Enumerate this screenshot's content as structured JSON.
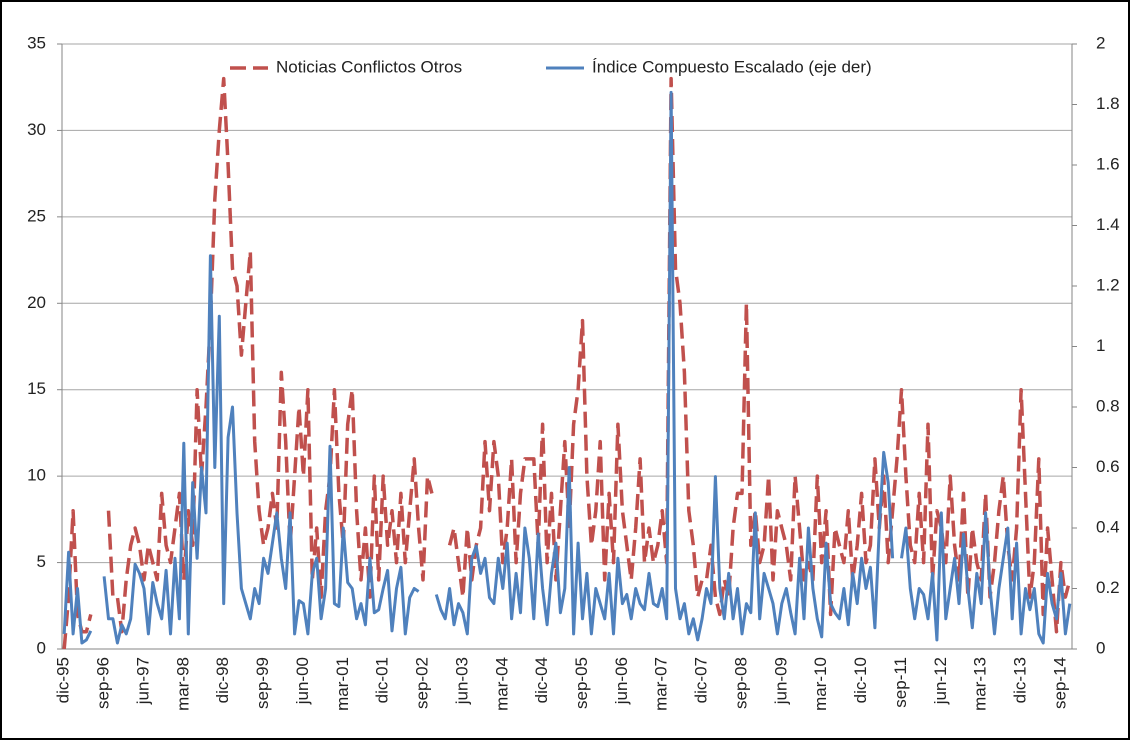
{
  "chart_data": {
    "type": "line",
    "categories": [
      "dic-95",
      null,
      null,
      null,
      null,
      null,
      null,
      null,
      null,
      "sep-96",
      null,
      null,
      null,
      null,
      null,
      null,
      null,
      null,
      "jun-97",
      null,
      null,
      null,
      null,
      null,
      null,
      null,
      null,
      "mar-98",
      null,
      null,
      null,
      null,
      null,
      null,
      null,
      null,
      "dic-98",
      null,
      null,
      null,
      null,
      null,
      null,
      null,
      null,
      "sep-99",
      null,
      null,
      null,
      null,
      null,
      null,
      null,
      null,
      "jun-00",
      null,
      null,
      null,
      null,
      null,
      null,
      null,
      null,
      "mar-01",
      null,
      null,
      null,
      null,
      null,
      null,
      null,
      null,
      "dic-01",
      null,
      null,
      null,
      null,
      null,
      null,
      null,
      null,
      "sep-02",
      null,
      null,
      null,
      null,
      null,
      null,
      null,
      null,
      "jun-03",
      null,
      null,
      null,
      null,
      null,
      null,
      null,
      null,
      "mar-04",
      null,
      null,
      null,
      null,
      null,
      null,
      null,
      null,
      "dic-04",
      null,
      null,
      null,
      null,
      null,
      null,
      null,
      null,
      "sep-05",
      null,
      null,
      null,
      null,
      null,
      null,
      null,
      null,
      "jun-06",
      null,
      null,
      null,
      null,
      null,
      null,
      null,
      null,
      "mar-07",
      null,
      null,
      null,
      null,
      null,
      null,
      null,
      null,
      "dic-07",
      null,
      null,
      null,
      null,
      null,
      null,
      null,
      null,
      "sep-08",
      null,
      null,
      null,
      null,
      null,
      null,
      null,
      null,
      "jun-09",
      null,
      null,
      null,
      null,
      null,
      null,
      null,
      null,
      "mar-10",
      null,
      null,
      null,
      null,
      null,
      null,
      null,
      null,
      "dic-10",
      null,
      null,
      null,
      null,
      null,
      null,
      null,
      null,
      "sep-11",
      null,
      null,
      null,
      null,
      null,
      null,
      null,
      null,
      "jun-12",
      null,
      null,
      null,
      null,
      null,
      null,
      null,
      null,
      "mar-13",
      null,
      null,
      null,
      null,
      null,
      null,
      null,
      null,
      "dic-13",
      null,
      null,
      null,
      null,
      null,
      null,
      null,
      null,
      "sep-14",
      null,
      null
    ],
    "series": [
      {
        "name": "Noticias Conflictos Otros",
        "color": "#c0504d",
        "dash": true,
        "values": [
          0,
          3,
          8,
          2,
          1,
          1,
          2,
          null,
          null,
          null,
          8,
          3,
          3,
          1,
          4,
          6,
          7,
          6,
          4,
          6,
          5,
          4,
          9,
          6,
          5,
          7,
          9,
          4,
          8,
          6,
          15,
          10,
          14,
          19,
          26,
          30,
          33,
          28,
          22,
          21,
          17,
          20,
          23,
          12,
          8,
          6,
          7,
          9,
          7,
          16,
          12,
          6,
          10,
          14,
          10,
          15,
          4,
          7,
          3,
          8,
          10,
          15,
          9,
          6,
          13,
          15,
          8,
          4,
          7,
          3,
          10,
          4,
          10,
          6,
          8,
          5,
          9,
          5,
          8,
          11,
          7,
          4,
          10,
          9,
          null,
          null,
          null,
          6,
          7,
          5,
          3,
          7,
          4,
          6,
          7,
          12,
          8,
          12,
          10,
          5,
          7,
          11,
          5,
          9,
          11,
          11,
          11,
          6,
          13,
          5,
          9,
          4,
          8,
          12,
          7,
          13,
          15,
          19,
          10,
          6,
          8,
          12,
          4,
          9,
          5,
          13,
          8,
          6,
          4,
          7,
          11,
          5,
          7,
          5,
          6,
          8,
          5,
          33,
          22,
          20,
          16,
          8,
          6,
          3,
          4,
          4,
          6,
          3,
          2,
          4,
          3,
          7,
          9,
          9,
          20,
          6,
          8,
          5,
          6,
          10,
          4,
          8,
          7,
          6,
          4,
          10,
          7,
          4,
          5,
          4,
          10,
          5,
          8,
          2,
          7,
          6,
          5,
          8,
          4,
          6,
          9,
          5,
          6,
          11,
          7,
          10,
          5,
          8,
          11,
          15,
          10,
          6,
          5,
          9,
          5,
          13,
          4,
          8,
          7,
          5,
          10,
          6,
          4,
          9,
          3,
          7,
          5,
          4,
          9,
          3,
          5,
          8,
          10,
          6,
          4,
          7,
          15,
          9,
          3,
          5,
          11,
          2,
          7,
          4,
          1,
          5,
          3,
          4
        ]
      },
      {
        "name": "Índice Compuesto Escalado (eje der)",
        "color": "#4f81bd",
        "axis": "y2",
        "dash": false,
        "values": [
          0.05,
          0.32,
          0.05,
          0.2,
          0.02,
          0.03,
          0.06,
          null,
          null,
          0.24,
          0.1,
          0.1,
          0.02,
          0.08,
          0.05,
          0.1,
          0.28,
          0.25,
          0.2,
          0.05,
          0.22,
          0.15,
          0.1,
          0.26,
          0.05,
          0.3,
          0.1,
          0.68,
          0.05,
          0.55,
          0.3,
          0.6,
          0.45,
          1.3,
          0.6,
          1.1,
          0.15,
          0.7,
          0.8,
          0.45,
          0.2,
          0.15,
          0.1,
          0.2,
          0.15,
          0.3,
          0.25,
          0.35,
          0.45,
          0.3,
          0.2,
          0.45,
          0.05,
          0.16,
          0.15,
          0.05,
          0.25,
          0.3,
          0.1,
          0.2,
          0.67,
          0.15,
          0.14,
          0.4,
          0.22,
          0.2,
          0.1,
          0.15,
          0.08,
          0.3,
          0.12,
          0.13,
          0.2,
          0.26,
          0.06,
          0.2,
          0.27,
          0.05,
          0.17,
          0.2,
          0.19,
          null,
          null,
          null,
          0.18,
          0.13,
          0.1,
          0.2,
          0.08,
          0.15,
          0.12,
          0.05,
          0.3,
          0.34,
          0.25,
          0.3,
          0.17,
          0.15,
          0.3,
          0.2,
          0.35,
          0.1,
          0.25,
          0.12,
          0.4,
          0.3,
          0.1,
          0.38,
          0.2,
          0.08,
          0.25,
          0.35,
          0.12,
          0.2,
          0.6,
          0.05,
          0.35,
          0.1,
          0.25,
          0.05,
          0.2,
          0.15,
          0.1,
          0.25,
          0.05,
          0.3,
          0.15,
          0.18,
          0.1,
          0.2,
          0.15,
          0.13,
          0.25,
          0.15,
          0.14,
          0.2,
          0.1,
          1.84,
          0.2,
          0.1,
          0.15,
          0.05,
          0.1,
          0.03,
          0.1,
          0.2,
          0.15,
          0.57,
          0.2,
          0.1,
          0.25,
          0.1,
          0.2,
          0.05,
          0.15,
          0.12,
          0.45,
          0.1,
          0.25,
          0.2,
          0.15,
          0.05,
          0.15,
          0.2,
          0.12,
          0.05,
          0.3,
          0.1,
          0.4,
          0.2,
          0.1,
          0.04,
          0.35,
          0.15,
          0.12,
          0.1,
          0.2,
          0.08,
          0.25,
          0.15,
          0.3,
          0.2,
          0.27,
          0.07,
          0.4,
          0.65,
          0.55,
          0.3,
          null,
          0.3,
          0.4,
          0.2,
          0.1,
          0.2,
          0.18,
          0.1,
          0.25,
          0.03,
          0.45,
          0.1,
          0.2,
          0.3,
          0.15,
          0.38,
          0.2,
          0.07,
          0.25,
          0.15,
          0.45,
          0.2,
          0.05,
          0.2,
          0.3,
          0.4,
          0.1,
          0.35,
          0.05,
          0.2,
          0.13,
          0.2,
          0.05,
          0.02,
          0.25,
          0.15,
          0.1,
          0.25,
          0.05,
          0.15
        ]
      }
    ],
    "ylim": [
      0,
      35
    ],
    "yticks": [
      0,
      5,
      10,
      15,
      20,
      25,
      30,
      35
    ],
    "y2lim": [
      0,
      2
    ],
    "y2ticks": [
      0,
      0.2,
      0.4,
      0.6,
      0.8,
      1,
      1.2,
      1.4,
      1.6,
      1.8,
      2
    ],
    "grid": true,
    "legend": "top"
  }
}
